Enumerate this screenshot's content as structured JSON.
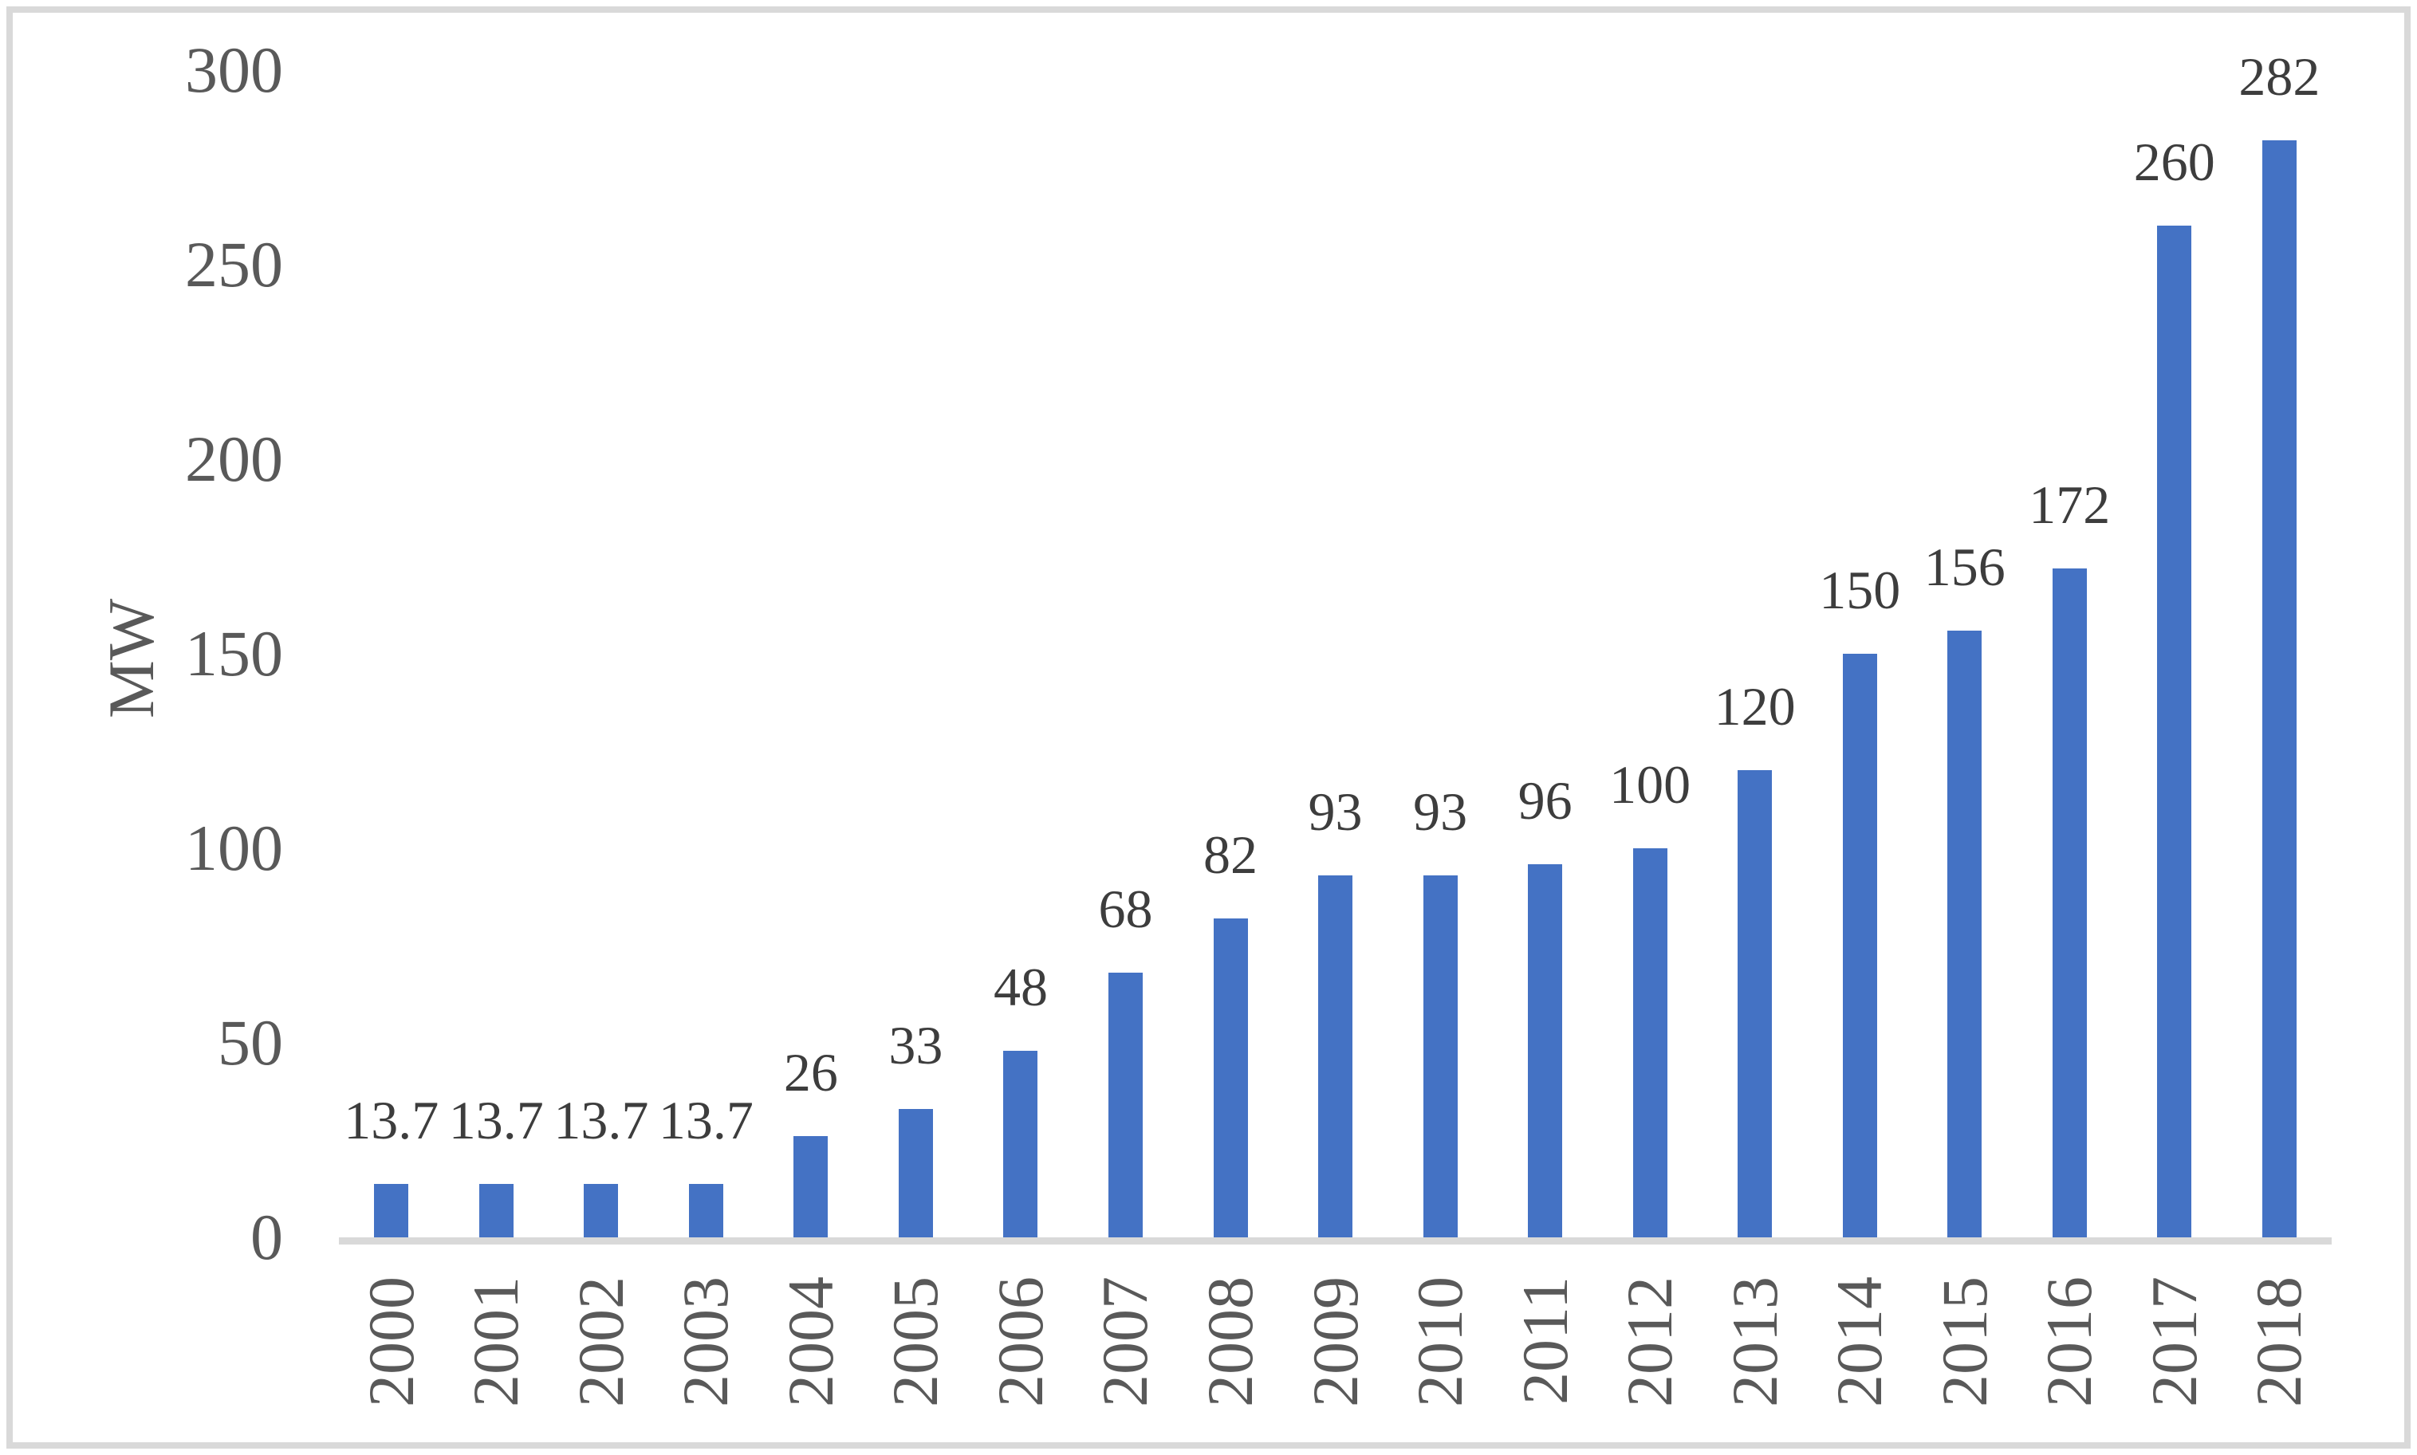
{
  "chart_data": {
    "type": "bar",
    "title": "",
    "ylabel": "MW",
    "xlabel": "",
    "categories": [
      "2000",
      "2001",
      "2002",
      "2003",
      "2004",
      "2005",
      "2006",
      "2007",
      "2008",
      "2009",
      "2010",
      "2011",
      "2012",
      "2013",
      "2014",
      "2015",
      "2016",
      "2017",
      "2018"
    ],
    "values": [
      13.7,
      13.7,
      13.7,
      13.7,
      26,
      33,
      48,
      68,
      82,
      93,
      93,
      96,
      100,
      120,
      150,
      156,
      172,
      260,
      282
    ],
    "data_labels": [
      "13.7",
      "13.7",
      "13.7",
      "13.7",
      "26",
      "33",
      "48",
      "68",
      "82",
      "93",
      "93",
      "96",
      "100",
      "120",
      "150",
      "156",
      "172",
      "260",
      "282"
    ],
    "ylim": [
      0,
      300
    ],
    "yticks": [
      0,
      50,
      100,
      150,
      200,
      250,
      300
    ],
    "grid": false,
    "legend_position": "none",
    "bar_color": "#4472C4",
    "axis_line_color": "#D9D9D9",
    "data_label_color": "#3d3d3d",
    "tick_label_color": "#595959"
  }
}
